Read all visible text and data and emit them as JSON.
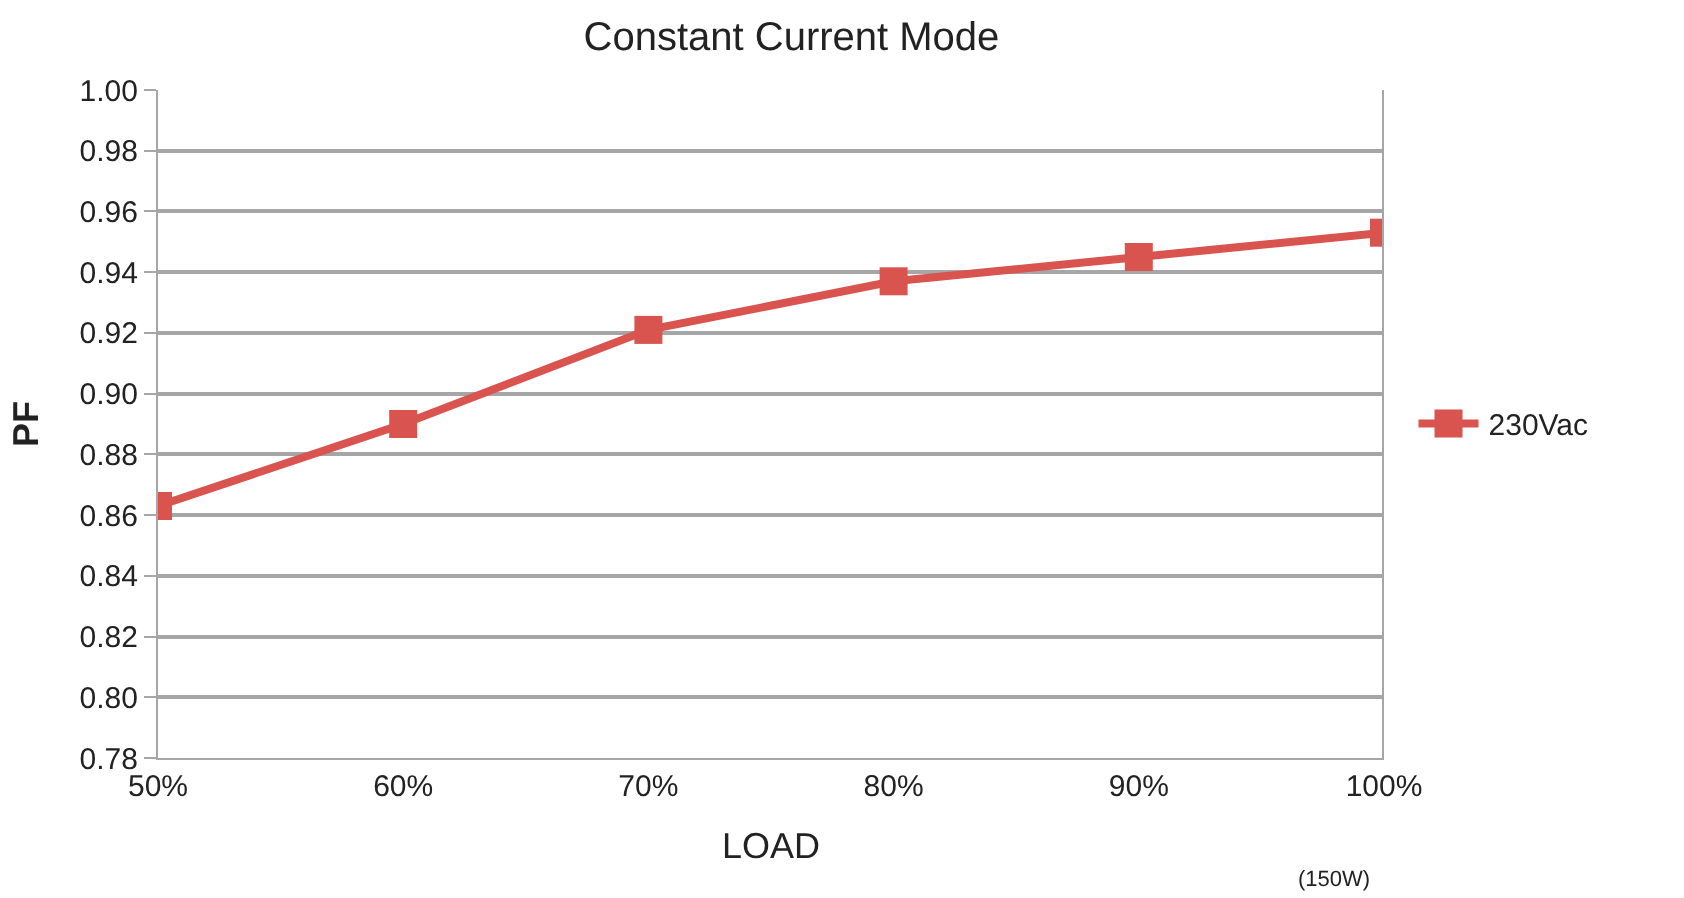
{
  "chart_data": {
    "type": "line",
    "title": "Constant Current Mode",
    "xlabel": "LOAD",
    "ylabel": "PF",
    "x": [
      50,
      60,
      70,
      80,
      90,
      100
    ],
    "series": [
      {
        "name": "230Vac",
        "color": "#d9534f",
        "values": [
          0.863,
          0.89,
          0.921,
          0.937,
          0.945,
          0.953
        ]
      }
    ],
    "xlim": [
      50,
      100
    ],
    "xticks": [
      {
        "value": 50,
        "label": "50%"
      },
      {
        "value": 60,
        "label": "60%"
      },
      {
        "value": 70,
        "label": "70%"
      },
      {
        "value": 80,
        "label": "80%"
      },
      {
        "value": 90,
        "label": "90%"
      },
      {
        "value": 100,
        "label": "100%"
      }
    ],
    "ylim": [
      0.78,
      1.0
    ],
    "yticks": [
      {
        "value": 0.78,
        "label": "0.78"
      },
      {
        "value": 0.8,
        "label": "0.80"
      },
      {
        "value": 0.82,
        "label": "0.82"
      },
      {
        "value": 0.84,
        "label": "0.84"
      },
      {
        "value": 0.86,
        "label": "0.86"
      },
      {
        "value": 0.88,
        "label": "0.88"
      },
      {
        "value": 0.9,
        "label": "0.90"
      },
      {
        "value": 0.92,
        "label": "0.92"
      },
      {
        "value": 0.94,
        "label": "0.94"
      },
      {
        "value": 0.96,
        "label": "0.96"
      },
      {
        "value": 0.98,
        "label": "0.98"
      },
      {
        "value": 1.0,
        "label": "1.00"
      }
    ],
    "annotations": [
      "(150W)"
    ],
    "grid": "y",
    "legend": "right",
    "marker": "square",
    "line_style": "solid"
  }
}
